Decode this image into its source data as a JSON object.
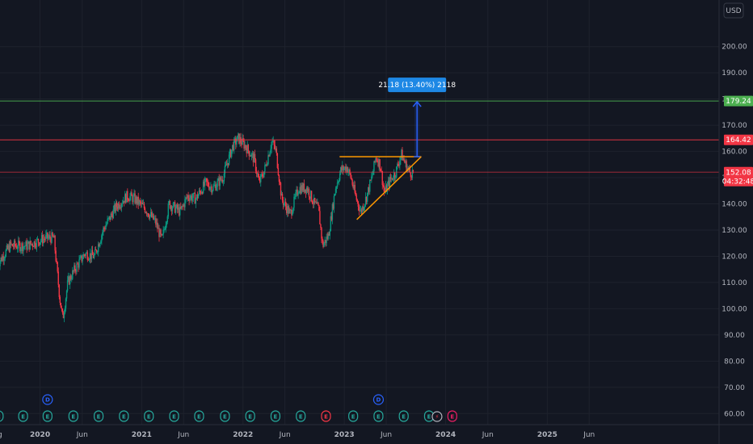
{
  "chart_data": {
    "type": "candlestick",
    "currency": "USD",
    "y_ticks": [
      60,
      70,
      80,
      90,
      100,
      110,
      120,
      130,
      140,
      150,
      160,
      170,
      180,
      190,
      200
    ],
    "y_tick_labels": [
      "60.00",
      "70.00",
      "80.00",
      "90.00",
      "100.00",
      "110.00",
      "120.00",
      "130.00",
      "140.00",
      "150.00",
      "160.00",
      "170.00",
      "180.00",
      "190.00",
      "200.00"
    ],
    "ylim": [
      57,
      211
    ],
    "x_start": "2019-08-01",
    "x_end": "2025-08-15",
    "x_ticks": [
      {
        "date": "2019-08-01",
        "label": "ug"
      },
      {
        "date": "2020-01-01",
        "label": "2020"
      },
      {
        "date": "2020-06-01",
        "label": "Jun"
      },
      {
        "date": "2021-01-01",
        "label": "2021"
      },
      {
        "date": "2021-06-01",
        "label": "Jun"
      },
      {
        "date": "2022-01-01",
        "label": "2022"
      },
      {
        "date": "2022-06-01",
        "label": "Jun"
      },
      {
        "date": "2023-01-01",
        "label": "2023"
      },
      {
        "date": "2023-06-01",
        "label": "Jun"
      },
      {
        "date": "2024-01-01",
        "label": "2024"
      },
      {
        "date": "2024-06-01",
        "label": "Jun"
      },
      {
        "date": "2025-01-01",
        "label": "2025"
      },
      {
        "date": "2025-06-01",
        "label": "Jun"
      }
    ],
    "price_path": [
      [
        "2019-08-01",
        117
      ],
      [
        "2019-09-15",
        124
      ],
      [
        "2019-11-15",
        124
      ],
      [
        "2020-01-20",
        127
      ],
      [
        "2020-02-20",
        127
      ],
      [
        "2020-03-12",
        104
      ],
      [
        "2020-03-23",
        96
      ],
      [
        "2020-04-10",
        110
      ],
      [
        "2020-05-05",
        115
      ],
      [
        "2020-06-10",
        121
      ],
      [
        "2020-07-15",
        120
      ],
      [
        "2020-08-15",
        130
      ],
      [
        "2020-10-01",
        139
      ],
      [
        "2020-11-10",
        143
      ],
      [
        "2020-12-05",
        142
      ],
      [
        "2021-01-15",
        138
      ],
      [
        "2021-02-20",
        133
      ],
      [
        "2021-03-15",
        126
      ],
      [
        "2021-04-10",
        140
      ],
      [
        "2021-05-20",
        137
      ],
      [
        "2021-06-15",
        143
      ],
      [
        "2021-07-15",
        142
      ],
      [
        "2021-08-20",
        148
      ],
      [
        "2021-09-15",
        146
      ],
      [
        "2021-10-20",
        150
      ],
      [
        "2021-11-25",
        162
      ],
      [
        "2021-12-15",
        165
      ],
      [
        "2022-01-10",
        162
      ],
      [
        "2022-02-10",
        157
      ],
      [
        "2022-02-28",
        148
      ],
      [
        "2022-03-20",
        153
      ],
      [
        "2022-04-15",
        164
      ],
      [
        "2022-04-30",
        160
      ],
      [
        "2022-05-20",
        142
      ],
      [
        "2022-06-20",
        136
      ],
      [
        "2022-07-20",
        146
      ],
      [
        "2022-08-20",
        146
      ],
      [
        "2022-09-15",
        140
      ],
      [
        "2022-09-30",
        138
      ],
      [
        "2022-10-15",
        124
      ],
      [
        "2022-11-05",
        128
      ],
      [
        "2022-11-30",
        146
      ],
      [
        "2022-12-20",
        153
      ],
      [
        "2023-01-10",
        154
      ],
      [
        "2023-01-25",
        150
      ],
      [
        "2023-02-10",
        143
      ],
      [
        "2023-03-01",
        137
      ],
      [
        "2023-03-20",
        142
      ],
      [
        "2023-04-10",
        150
      ],
      [
        "2023-04-25",
        158
      ],
      [
        "2023-05-10",
        155
      ],
      [
        "2023-05-25",
        144
      ],
      [
        "2023-06-15",
        149
      ],
      [
        "2023-07-05",
        152
      ],
      [
        "2023-07-25",
        159
      ],
      [
        "2023-08-10",
        155
      ],
      [
        "2023-08-25",
        152
      ],
      [
        "2023-09-08",
        152.08
      ]
    ],
    "horizontal_lines": [
      {
        "value": 179.24,
        "label": "179.24",
        "color": "#4caf50",
        "tag_bg": "#4caf50"
      },
      {
        "value": 164.42,
        "label": "164.42",
        "color": "#f23645",
        "tag_bg": "#f23645"
      },
      {
        "value": 152.08,
        "label": "152.08",
        "sublabel": "04:32:48",
        "color": "#f23645",
        "tag_bg": "#f23645"
      }
    ],
    "triangle": {
      "color": "#ff9800",
      "resistance": {
        "from": [
          "2022-12-15",
          158
        ],
        "to": [
          "2023-10-05",
          158
        ]
      },
      "support": {
        "from": [
          "2023-02-15",
          134
        ],
        "to": [
          "2023-10-05",
          158
        ]
      }
    },
    "projection": {
      "date": "2023-09-20",
      "from": 158,
      "to": 179.24,
      "label": "21.18 (13.40%) 2118",
      "color": "#2962ff",
      "label_bg": "#1e88e5"
    },
    "event_badges": [
      {
        "date": "2019-08-05",
        "text": "E",
        "kind": "earnings"
      },
      {
        "date": "2019-11-01",
        "text": "E",
        "kind": "earnings"
      },
      {
        "date": "2020-01-28",
        "text": "E",
        "kind": "earnings"
      },
      {
        "date": "2020-01-28",
        "text": "D",
        "kind": "dividend"
      },
      {
        "date": "2020-04-30",
        "text": "E",
        "kind": "earnings"
      },
      {
        "date": "2020-07-30",
        "text": "E",
        "kind": "earnings"
      },
      {
        "date": "2020-10-29",
        "text": "E",
        "kind": "earnings"
      },
      {
        "date": "2021-01-27",
        "text": "E",
        "kind": "earnings"
      },
      {
        "date": "2021-04-28",
        "text": "E",
        "kind": "earnings"
      },
      {
        "date": "2021-07-27",
        "text": "E",
        "kind": "earnings"
      },
      {
        "date": "2021-10-28",
        "text": "E",
        "kind": "earnings"
      },
      {
        "date": "2022-01-27",
        "text": "E",
        "kind": "earnings"
      },
      {
        "date": "2022-04-28",
        "text": "E",
        "kind": "earnings"
      },
      {
        "date": "2022-07-28",
        "text": "E",
        "kind": "earnings"
      },
      {
        "date": "2022-10-27",
        "text": "E",
        "kind": "earnings-miss"
      },
      {
        "date": "2023-02-02",
        "text": "E",
        "kind": "earnings"
      },
      {
        "date": "2023-05-04",
        "text": "E",
        "kind": "earnings"
      },
      {
        "date": "2023-05-04",
        "text": "D",
        "kind": "dividend"
      },
      {
        "date": "2023-08-03",
        "text": "E",
        "kind": "earnings"
      },
      {
        "date": "2023-11-02",
        "text": "E",
        "kind": "earnings"
      },
      {
        "date": "2023-12-01",
        "text": "⚡",
        "kind": "split"
      },
      {
        "date": "2024-01-25",
        "text": "E",
        "kind": "earnings-upcoming"
      }
    ]
  },
  "colors": {
    "background": "#131722",
    "grid": "#1e222d",
    "up": "#089981",
    "down": "#f23645",
    "axis_text": "#b2b5be",
    "badge_earnings": "#26a69a",
    "badge_dividend": "#2962ff",
    "badge_miss": "#f23645",
    "badge_upcoming": "#e91e63"
  }
}
